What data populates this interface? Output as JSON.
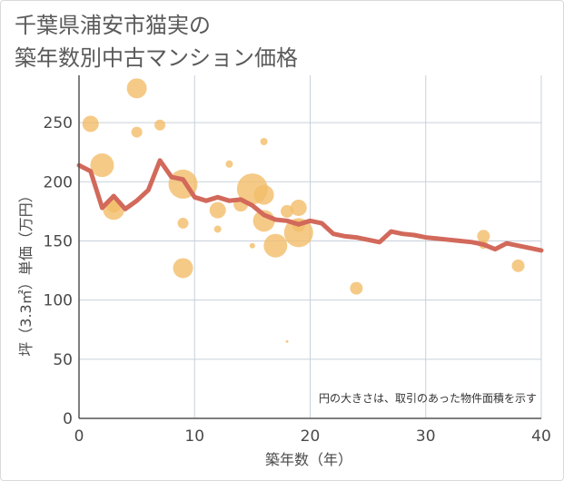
{
  "title": {
    "line1": "千葉県浦安市猫実の",
    "line2": "築年数別中古マンション価格"
  },
  "colors": {
    "bubble": "#f3bd69",
    "line": "#d2695b",
    "grid": "#c8d0da",
    "axis": "#555555",
    "plot_bg": "#ffffff"
  },
  "chart_data": {
    "type": "scatter",
    "xlabel": "築年数（年）",
    "ylabel": "坪（3.3㎡）単価（万円）",
    "xlim": [
      0,
      40
    ],
    "ylim": [
      0,
      290
    ],
    "x_ticks": [
      0,
      10,
      20,
      30,
      40
    ],
    "y_ticks": [
      0,
      50,
      100,
      150,
      200,
      250
    ],
    "grid": true,
    "note": "円の大きさは、取引のあった物件面積を示す",
    "bubbles": [
      {
        "x": 1,
        "y": 249,
        "size": 9
      },
      {
        "x": 2,
        "y": 214,
        "size": 13
      },
      {
        "x": 3,
        "y": 177,
        "size": 12
      },
      {
        "x": 3,
        "y": 180,
        "size": 8
      },
      {
        "x": 5,
        "y": 279,
        "size": 11
      },
      {
        "x": 5,
        "y": 242,
        "size": 6
      },
      {
        "x": 7,
        "y": 248,
        "size": 6
      },
      {
        "x": 9,
        "y": 198,
        "size": 16
      },
      {
        "x": 9,
        "y": 165,
        "size": 6
      },
      {
        "x": 9,
        "y": 127,
        "size": 11
      },
      {
        "x": 12,
        "y": 176,
        "size": 9
      },
      {
        "x": 12,
        "y": 160,
        "size": 4
      },
      {
        "x": 13,
        "y": 215,
        "size": 4
      },
      {
        "x": 14,
        "y": 181,
        "size": 8
      },
      {
        "x": 15,
        "y": 194,
        "size": 17
      },
      {
        "x": 15,
        "y": 146,
        "size": 3
      },
      {
        "x": 16,
        "y": 234,
        "size": 4
      },
      {
        "x": 16,
        "y": 189,
        "size": 11
      },
      {
        "x": 16,
        "y": 167,
        "size": 12
      },
      {
        "x": 17,
        "y": 146,
        "size": 13
      },
      {
        "x": 18,
        "y": 175,
        "size": 7
      },
      {
        "x": 18,
        "y": 65,
        "size": 1.5
      },
      {
        "x": 19,
        "y": 157,
        "size": 16
      },
      {
        "x": 19,
        "y": 178,
        "size": 9
      },
      {
        "x": 19,
        "y": 163,
        "size": 7
      },
      {
        "x": 24,
        "y": 110,
        "size": 7
      },
      {
        "x": 35,
        "y": 154,
        "size": 7
      },
      {
        "x": 35,
        "y": 147,
        "size": 5
      },
      {
        "x": 38,
        "y": 129,
        "size": 7
      }
    ],
    "series": [
      {
        "type": "line",
        "x": [
          0,
          1,
          2,
          3,
          4,
          5,
          6,
          7,
          8,
          9,
          10,
          11,
          12,
          13,
          14,
          15,
          16,
          17,
          18,
          19,
          20,
          21,
          22,
          23,
          24,
          25,
          26,
          27,
          28,
          29,
          30,
          31,
          32,
          33,
          34,
          35,
          36,
          37,
          38,
          39,
          40
        ],
        "y": [
          214,
          209,
          178,
          188,
          177,
          184,
          193,
          218,
          204,
          202,
          187,
          184,
          187,
          184,
          185,
          180,
          172,
          168,
          167,
          164,
          167,
          165,
          156,
          154,
          153,
          151,
          149,
          158,
          156,
          155,
          153,
          152,
          151,
          150,
          149,
          147,
          143,
          148,
          146,
          144,
          142
        ]
      }
    ]
  }
}
